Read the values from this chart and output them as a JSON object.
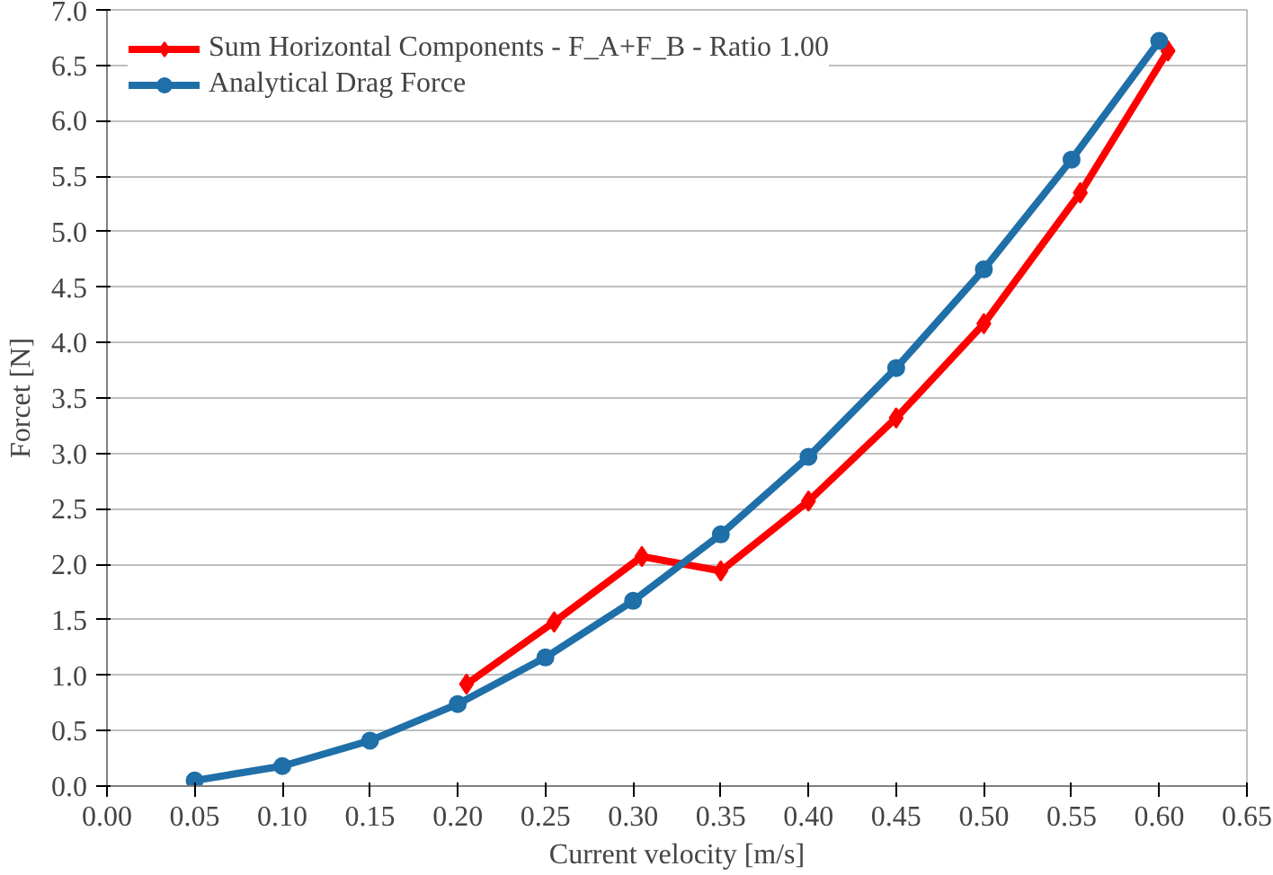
{
  "chart_data": {
    "type": "line",
    "xlabel": "Current velocity [m/s]",
    "ylabel": "Forcet [N]",
    "xlim": [
      0,
      0.65
    ],
    "xticks": [
      {
        "value": 0,
        "label": "0.00"
      },
      {
        "value": 0.05,
        "label": "0.05"
      },
      {
        "value": 0.1,
        "label": "0.10"
      },
      {
        "value": 0.15,
        "label": "0.15"
      },
      {
        "value": 0.2,
        "label": "0.20"
      },
      {
        "value": 0.25,
        "label": "0.25"
      },
      {
        "value": 0.3,
        "label": "0.30"
      },
      {
        "value": 0.35,
        "label": "0.35"
      },
      {
        "value": 0.4,
        "label": "0.40"
      },
      {
        "value": 0.45,
        "label": "0.45"
      },
      {
        "value": 0.5,
        "label": "0.50"
      },
      {
        "value": 0.55,
        "label": "0.55"
      },
      {
        "value": 0.6,
        "label": "0.60"
      },
      {
        "value": 0.65,
        "label": "0.65"
      }
    ],
    "ylim": [
      0,
      7
    ],
    "yticks": [
      {
        "value": 0,
        "label": "0.0"
      },
      {
        "value": 0.5,
        "label": "0.5"
      },
      {
        "value": 1,
        "label": "1.0"
      },
      {
        "value": 1.5,
        "label": "1.5"
      },
      {
        "value": 2,
        "label": "2.0"
      },
      {
        "value": 2.5,
        "label": "2.5"
      },
      {
        "value": 3,
        "label": "3.0"
      },
      {
        "value": 3.5,
        "label": "3.5"
      },
      {
        "value": 4,
        "label": "4.0"
      },
      {
        "value": 4.5,
        "label": "4.5"
      },
      {
        "value": 5,
        "label": "5.0"
      },
      {
        "value": 5.5,
        "label": "5.5"
      },
      {
        "value": 6,
        "label": "6.0"
      },
      {
        "value": 6.5,
        "label": "6.5"
      },
      {
        "value": 7,
        "label": "7.0"
      }
    ],
    "grid": "y",
    "legend": "top left",
    "line_style": "solid",
    "series": [
      {
        "name": "Sum Horizontal Components - F_A+F_B - Ratio 1.00",
        "color": "#ff0000",
        "marker": "diamond",
        "x": [
          0.205,
          0.255,
          0.305,
          0.35,
          0.4,
          0.45,
          0.5,
          0.555,
          0.605
        ],
        "values": [
          0.92,
          1.48,
          2.07,
          1.94,
          2.57,
          3.32,
          4.17,
          5.35,
          6.63
        ]
      },
      {
        "name": "Analytical Drag Force",
        "color": "#1f6fa8",
        "marker": "circle",
        "x": [
          0.05,
          0.1,
          0.15,
          0.2,
          0.25,
          0.3,
          0.35,
          0.4,
          0.45,
          0.5,
          0.55,
          0.6
        ],
        "values": [
          0.05,
          0.18,
          0.41,
          0.74,
          1.16,
          1.67,
          2.27,
          2.97,
          3.77,
          4.66,
          5.65,
          6.72
        ]
      }
    ]
  }
}
